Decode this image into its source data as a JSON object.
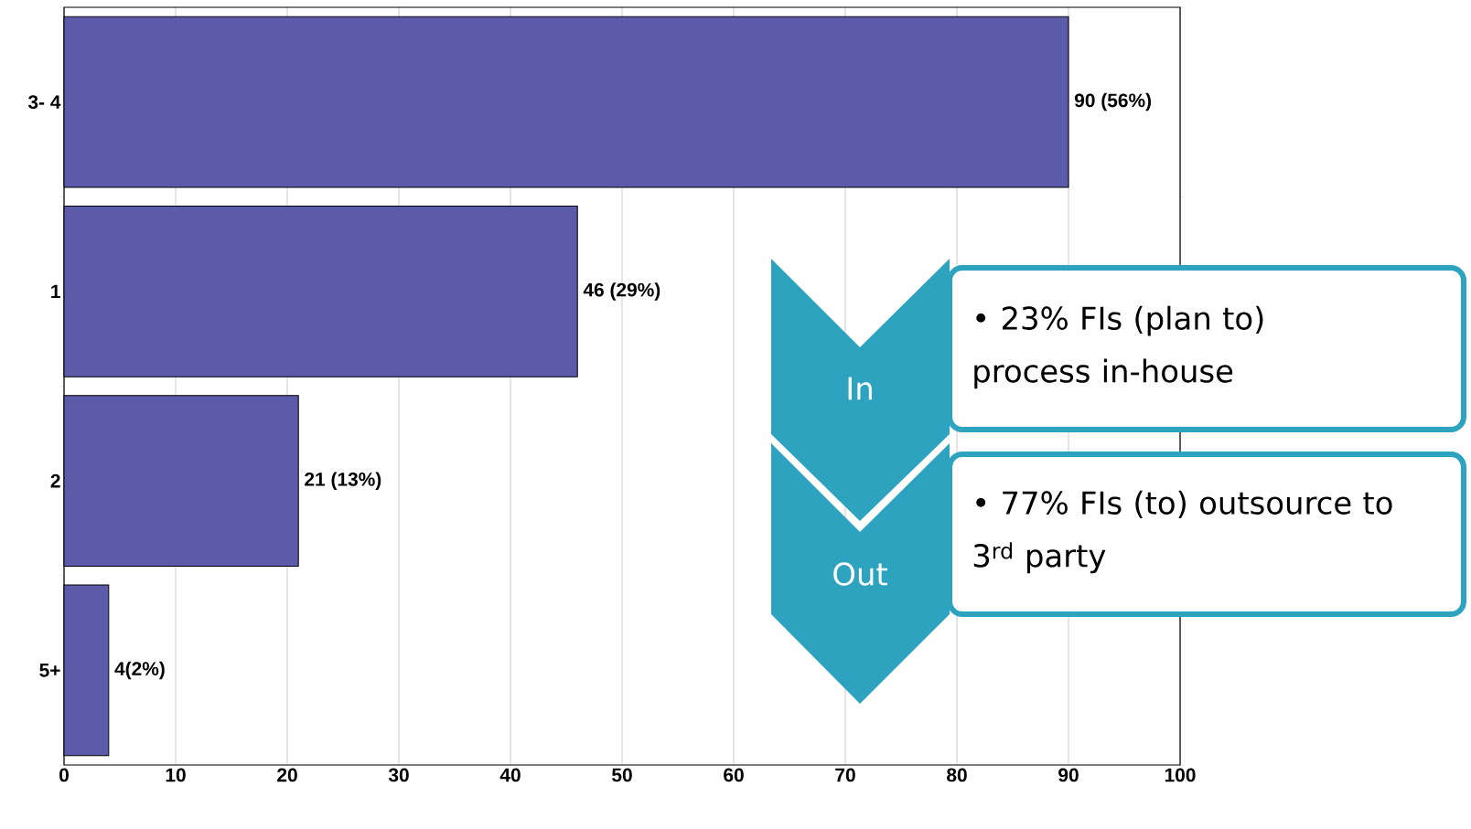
{
  "chart_data": {
    "type": "bar",
    "orientation": "horizontal",
    "categories": [
      "3- 4",
      "1",
      "2",
      "5+"
    ],
    "values": [
      90,
      46,
      21,
      4
    ],
    "value_labels": [
      "90 (56%)",
      "46 (29%)",
      "21 (13%)",
      "4(2%)"
    ],
    "color": "#5b5ba9",
    "xlim": [
      0,
      100
    ],
    "xticks": [
      0,
      10,
      20,
      30,
      40,
      50,
      60,
      70,
      80,
      90,
      100
    ],
    "grid": "x",
    "annotations": [
      "In",
      "• 23%  FIs (plan to) process in-house",
      "Out",
      "• 77%  FIs (to) outsource to 3$^{rd}$ party"
    ]
  }
}
